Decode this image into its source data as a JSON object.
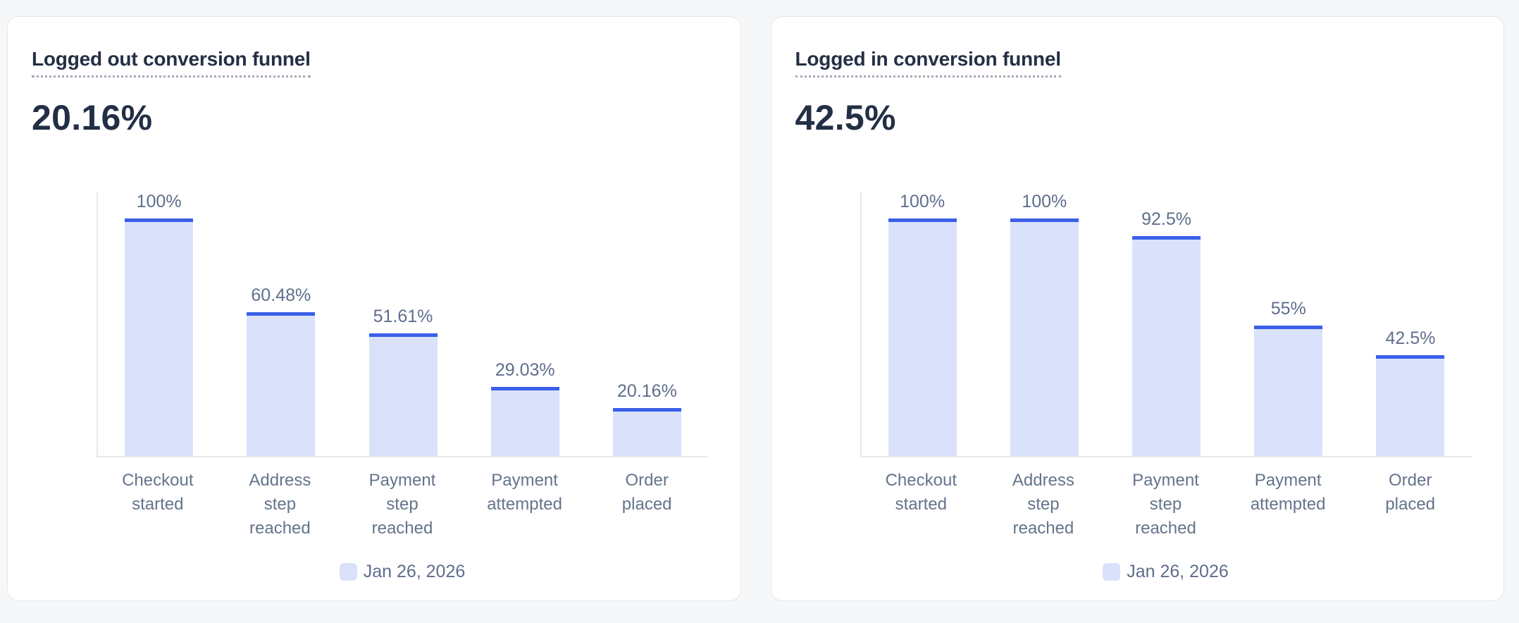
{
  "page": {
    "background_color": "#f6f7f9",
    "card_background": "#ffffff",
    "card_border_color": "#e3e6ec",
    "title_color": "#232f44",
    "label_color": "#64748b"
  },
  "cards": [
    {
      "title": "Logged out conversion funnel",
      "metric": "20.16%"
    },
    {
      "title": "Logged in conversion funnel",
      "metric": "42.5%"
    }
  ],
  "chart_data": [
    {
      "type": "bar",
      "title": "Logged out conversion funnel",
      "subtitle_metric": "20.16%",
      "categories": [
        "Checkout started",
        "Address step reached",
        "Payment step reached",
        "Payment attempted",
        "Order placed"
      ],
      "values": [
        100,
        60.48,
        51.61,
        29.03,
        20.16
      ],
      "value_labels": [
        "100%",
        "60.48%",
        "51.61%",
        "29.03%",
        "20.16%"
      ],
      "xlabel": "",
      "ylabel": "",
      "ylim": [
        0,
        100
      ],
      "grid": false,
      "legend": {
        "position": "bottom",
        "entries": [
          "Jan 26, 2026"
        ]
      },
      "colors": {
        "bar_fill": "#d9e2fa",
        "bar_top_border": "#3a5fe8",
        "legend_swatch": "#d9e1fb",
        "axis_line": "#e6e8ed"
      }
    },
    {
      "type": "bar",
      "title": "Logged in conversion funnel",
      "subtitle_metric": "42.5%",
      "categories": [
        "Checkout started",
        "Address step reached",
        "Payment step reached",
        "Payment attempted",
        "Order placed"
      ],
      "values": [
        100,
        100,
        92.5,
        55,
        42.5
      ],
      "value_labels": [
        "100%",
        "100%",
        "92.5%",
        "55%",
        "42.5%"
      ],
      "xlabel": "",
      "ylabel": "",
      "ylim": [
        0,
        100
      ],
      "grid": false,
      "legend": {
        "position": "bottom",
        "entries": [
          "Jan 26, 2026"
        ]
      },
      "colors": {
        "bar_fill": "#d9e2fa",
        "bar_top_border": "#3a5fe8",
        "legend_swatch": "#d9e1fb",
        "axis_line": "#e6e8ed"
      }
    }
  ]
}
